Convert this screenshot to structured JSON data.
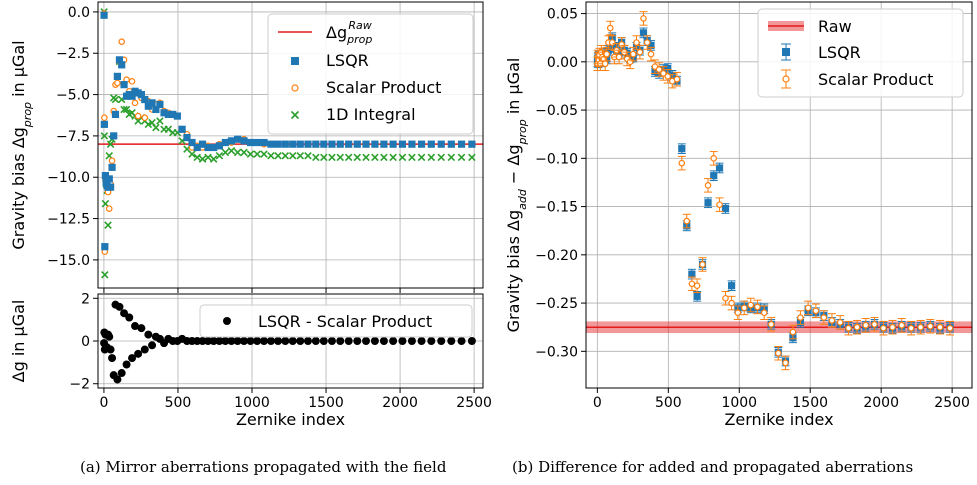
{
  "chart_data": [
    {
      "panel": "a-top",
      "type": "scatter",
      "xlabel": "",
      "ylabel": "Gravity bias Δg_prop in µGal",
      "xlim": [
        -40,
        2560
      ],
      "ylim": [
        -16.7,
        0.6
      ],
      "yticks": [
        0.0,
        -2.5,
        -5.0,
        -7.5,
        -10.0,
        -12.5,
        -15.0
      ],
      "ytick_labels": [
        "0.0",
        "−2.5",
        "−5.0",
        "−7.5",
        "−10.0",
        "−12.5",
        "−15.0"
      ],
      "xticks": [
        0,
        500,
        1000,
        1500,
        2000,
        2500
      ],
      "legend": {
        "placement": "top-right",
        "entries": [
          "Δg_prop^Raw",
          "LSQR",
          "Scalar Product",
          "1D Integral"
        ]
      },
      "reference_line": {
        "name": "Δg_prop^Raw",
        "y": -8.0,
        "color": "#e41a1c"
      },
      "series": [
        {
          "name": "LSQR",
          "marker": "square",
          "color": "#1f77b4",
          "x": [
            1,
            3,
            6,
            10,
            15,
            21,
            28,
            36,
            45,
            55,
            66,
            78,
            91,
            105,
            120,
            136,
            153,
            171,
            190,
            210,
            231,
            253,
            276,
            300,
            325,
            351,
            378,
            406,
            435,
            465,
            496,
            528,
            561,
            595,
            630,
            666,
            703,
            741,
            780,
            820,
            861,
            903,
            946,
            990,
            1035,
            1081,
            1128,
            1176,
            1225,
            1275,
            1326,
            1378,
            1431,
            1485,
            1540,
            1596,
            1653,
            1711,
            1770,
            1830,
            1891,
            1953,
            2016,
            2080,
            2145,
            2211,
            2278,
            2346,
            2415,
            2485
          ],
          "y": [
            -0.2,
            -6.8,
            -14.2,
            -9.9,
            -10.3,
            -10.5,
            -10.6,
            -10.1,
            -10.6,
            -9.4,
            -7.5,
            -6.2,
            -3.9,
            -2.9,
            -3.2,
            -4.4,
            -5.1,
            -5.0,
            -5.1,
            -4.8,
            -4.9,
            -5.0,
            -5.3,
            -5.7,
            -5.5,
            -5.9,
            -5.6,
            -6.1,
            -6.2,
            -6.2,
            -6.3,
            -7.1,
            -7.6,
            -7.9,
            -8.2,
            -8.0,
            -8.2,
            -8.2,
            -8.1,
            -7.9,
            -7.8,
            -7.7,
            -7.8,
            -7.9,
            -7.9,
            -7.9,
            -8.0,
            -8.0,
            -8.0,
            -8.0,
            -8.0,
            -8.0,
            -8.0,
            -8.0,
            -8.0,
            -8.0,
            -8.0,
            -8.0,
            -8.0,
            -8.0,
            -8.0,
            -8.0,
            -8.0,
            -8.0,
            -8.0,
            -8.0,
            -8.0,
            -8.0,
            -8.0,
            -8.0
          ]
        },
        {
          "name": "Scalar Product",
          "marker": "open-circle",
          "color": "#ff7f0e",
          "x": [
            1,
            3,
            6,
            10,
            15,
            21,
            28,
            36,
            45,
            55,
            66,
            78,
            91,
            105,
            120,
            136,
            153,
            171,
            190,
            210,
            231,
            253,
            276,
            300,
            325,
            351,
            378,
            406,
            435,
            465,
            496,
            528,
            561,
            595,
            630,
            666,
            703,
            741,
            780,
            820,
            861,
            903,
            946,
            990,
            1035,
            1081,
            1128,
            1176,
            1225,
            1275,
            1326,
            1378,
            1431,
            1485,
            1540,
            1596,
            1653,
            1711,
            1770,
            1830,
            1891,
            1953,
            2016,
            2080,
            2145,
            2211,
            2278,
            2346,
            2415,
            2485
          ],
          "y": [
            -0.1,
            -6.4,
            -14.5,
            -10.2,
            -10.0,
            -10.2,
            -10.9,
            -11.9,
            -10.4,
            -9.0,
            -6.0,
            -4.4,
            -4.3,
            -3.0,
            -1.8,
            -2.9,
            -4.1,
            -4.8,
            -4.2,
            -5.5,
            -6.3,
            -5.2,
            -6.4,
            -5.4,
            -5.9,
            -5.6,
            -5.5,
            -6.0,
            -6.1,
            -6.2,
            -6.3,
            -7.1,
            -7.4,
            -8.2,
            -8.1,
            -8.2,
            -8.1,
            -8.2,
            -8.0,
            -7.9,
            -7.9,
            -7.7,
            -7.7,
            -7.9,
            -7.9,
            -8.0,
            -8.0,
            -8.0,
            -8.0,
            -8.0,
            -8.0,
            -8.0,
            -8.0,
            -8.0,
            -8.0,
            -8.0,
            -8.0,
            -8.0,
            -8.0,
            -8.0,
            -8.0,
            -8.0,
            -8.0,
            -8.0,
            -8.0,
            -8.0,
            -8.0,
            -8.0,
            -8.0,
            -8.0
          ]
        },
        {
          "name": "1D Integral",
          "marker": "x",
          "color": "#2ca02c",
          "x": [
            1,
            3,
            6,
            10,
            15,
            21,
            28,
            36,
            45,
            55,
            66,
            78,
            91,
            105,
            120,
            136,
            153,
            171,
            190,
            210,
            231,
            253,
            276,
            300,
            325,
            351,
            378,
            406,
            435,
            465,
            496,
            528,
            561,
            595,
            630,
            666,
            703,
            741,
            780,
            820,
            861,
            903,
            946,
            990,
            1035,
            1081,
            1128,
            1176,
            1225,
            1275,
            1326,
            1378,
            1431,
            1485,
            1540,
            1596,
            1653,
            1711,
            1770,
            1830,
            1891,
            1953,
            2016,
            2080,
            2145,
            2211,
            2278,
            2346,
            2415,
            2485
          ],
          "y": [
            0.0,
            -7.5,
            -15.9,
            -11.6,
            -10.4,
            -10.8,
            -12.9,
            -8.7,
            -8.0,
            -7.7,
            -5.2,
            -5.3,
            -3.9,
            -3.0,
            -5.3,
            -5.9,
            -5.9,
            -6.2,
            -6.1,
            -6.3,
            -6.6,
            -6.4,
            -6.6,
            -6.8,
            -6.7,
            -7.0,
            -6.6,
            -7.1,
            -7.1,
            -7.3,
            -7.3,
            -7.8,
            -8.3,
            -8.6,
            -8.8,
            -8.9,
            -8.8,
            -8.9,
            -8.7,
            -8.5,
            -8.4,
            -8.5,
            -8.5,
            -8.6,
            -8.6,
            -8.6,
            -8.7,
            -8.7,
            -8.7,
            -8.7,
            -8.7,
            -8.7,
            -8.8,
            -8.8,
            -8.8,
            -8.8,
            -8.8,
            -8.8,
            -8.8,
            -8.8,
            -8.8,
            -8.8,
            -8.8,
            -8.8,
            -8.8,
            -8.8,
            -8.8,
            -8.8,
            -8.8,
            -8.8
          ]
        }
      ]
    },
    {
      "panel": "a-bottom",
      "type": "scatter",
      "xlabel": "Zernike index",
      "ylabel": "Δg in µGal",
      "xlim": [
        -40,
        2560
      ],
      "ylim": [
        -2.2,
        2.2
      ],
      "yticks": [
        2,
        0,
        -2
      ],
      "ytick_labels": [
        "2",
        "0",
        "−2"
      ],
      "xticks": [
        0,
        500,
        1000,
        1500,
        2000,
        2500
      ],
      "xtick_labels": [
        "0",
        "500",
        "1000",
        "1500",
        "2000",
        "2500"
      ],
      "legend": {
        "placement": "top-right",
        "entries": [
          "LSQR - Scalar Product"
        ]
      },
      "series": [
        {
          "name": "LSQR - Scalar Product",
          "marker": "filled-circle",
          "color": "#000000",
          "x": [
            1,
            3,
            6,
            10,
            15,
            21,
            28,
            36,
            45,
            55,
            66,
            78,
            91,
            105,
            120,
            136,
            153,
            171,
            190,
            210,
            231,
            253,
            276,
            300,
            325,
            351,
            378,
            406,
            435,
            465,
            496,
            528,
            561,
            595,
            630,
            666,
            703,
            741,
            780,
            820,
            861,
            903,
            946,
            990,
            1035,
            1081,
            1128,
            1176,
            1225,
            1275,
            1326,
            1378,
            1431,
            1485,
            1540,
            1596,
            1653,
            1711,
            1770,
            1830,
            1891,
            1953,
            2016,
            2080,
            2145,
            2211,
            2278,
            2346,
            2415,
            2485
          ],
          "y": [
            -0.1,
            0.4,
            -0.4,
            0.3,
            0.3,
            -0.3,
            0.3,
            0.2,
            -0.4,
            -0.8,
            -1.6,
            1.7,
            -1.8,
            1.6,
            -1.5,
            1.3,
            -1.1,
            1.1,
            -0.8,
            0.7,
            -0.6,
            0.6,
            -0.4,
            0.3,
            -0.2,
            0.2,
            0.1,
            -0.1,
            0.1,
            0.0,
            0.0,
            0.1,
            0.0,
            0.0,
            0.0,
            0.0,
            0.0,
            0.0,
            0.0,
            0.0,
            0.0,
            0.0,
            0.0,
            0.0,
            0.0,
            0.0,
            0.0,
            0.0,
            0.0,
            0.0,
            0.0,
            0.0,
            0.0,
            0.0,
            0.0,
            0.0,
            0.0,
            0.0,
            0.0,
            0.0,
            0.0,
            0.0,
            0.0,
            0.0,
            0.0,
            0.0,
            0.0,
            0.0,
            0.0,
            0.0
          ]
        }
      ]
    },
    {
      "panel": "b",
      "type": "scatter",
      "xlabel": "Zernike index",
      "ylabel": "Gravity bias Δg_add − Δg_prop in µGal",
      "xlim": [
        -80,
        2640
      ],
      "ylim": [
        -0.338,
        0.062
      ],
      "yticks": [
        0.05,
        0.0,
        -0.05,
        -0.1,
        -0.15,
        -0.2,
        -0.25,
        -0.3
      ],
      "ytick_labels": [
        "0.05",
        "0.00",
        "−0.05",
        "−0.10",
        "−0.15",
        "−0.20",
        "−0.25",
        "−0.30"
      ],
      "xticks": [
        0,
        500,
        1000,
        1500,
        2000,
        2500
      ],
      "xtick_labels": [
        "0",
        "500",
        "1000",
        "1500",
        "2000",
        "2500"
      ],
      "legend": {
        "placement": "top-right",
        "entries": [
          "Raw",
          "LSQR",
          "Scalar Product"
        ]
      },
      "reference_band": {
        "name": "Raw",
        "y": -0.275,
        "half_width": 0.006,
        "color": "#e41a1c"
      },
      "series": [
        {
          "name": "LSQR",
          "marker": "square",
          "color": "#1f77b4",
          "x": [
            1,
            3,
            6,
            10,
            15,
            21,
            28,
            36,
            45,
            55,
            66,
            78,
            91,
            105,
            120,
            136,
            153,
            171,
            190,
            210,
            231,
            253,
            276,
            300,
            325,
            351,
            378,
            406,
            435,
            465,
            496,
            528,
            561,
            595,
            630,
            666,
            703,
            741,
            780,
            820,
            861,
            903,
            946,
            990,
            1035,
            1081,
            1128,
            1176,
            1225,
            1275,
            1326,
            1378,
            1431,
            1485,
            1540,
            1596,
            1653,
            1711,
            1770,
            1830,
            1891,
            1953,
            2016,
            2080,
            2145,
            2211,
            2278,
            2346,
            2415,
            2485
          ],
          "y": [
            0.0,
            0.004,
            -0.001,
            0.006,
            0.002,
            0.003,
            0.006,
            0.0,
            0.009,
            0.004,
            0.003,
            0.012,
            0.016,
            0.025,
            0.015,
            0.012,
            0.008,
            0.02,
            0.012,
            0.009,
            0.004,
            0.005,
            0.015,
            0.012,
            0.03,
            0.022,
            0.017,
            -0.01,
            -0.012,
            -0.008,
            -0.007,
            -0.014,
            -0.02,
            -0.09,
            -0.17,
            -0.22,
            -0.243,
            -0.21,
            -0.146,
            -0.118,
            -0.11,
            -0.152,
            -0.232,
            -0.255,
            -0.253,
            -0.255,
            -0.255,
            -0.256,
            -0.272,
            -0.301,
            -0.31,
            -0.286,
            -0.27,
            -0.258,
            -0.26,
            -0.263,
            -0.27,
            -0.272,
            -0.275,
            -0.276,
            -0.274,
            -0.272,
            -0.275,
            -0.276,
            -0.274,
            -0.275,
            -0.275,
            -0.274,
            -0.276,
            -0.275
          ]
        },
        {
          "name": "Scalar Product",
          "marker": "open-circle",
          "color": "#ff7f0e",
          "x": [
            1,
            3,
            6,
            10,
            15,
            21,
            28,
            36,
            45,
            55,
            66,
            78,
            91,
            105,
            120,
            136,
            153,
            171,
            190,
            210,
            231,
            253,
            276,
            300,
            325,
            351,
            378,
            406,
            435,
            465,
            496,
            528,
            561,
            595,
            630,
            666,
            703,
            741,
            780,
            820,
            861,
            903,
            946,
            990,
            1035,
            1081,
            1128,
            1176,
            1225,
            1275,
            1326,
            1378,
            1431,
            1485,
            1540,
            1596,
            1653,
            1711,
            1770,
            1830,
            1891,
            1953,
            2016,
            2080,
            2145,
            2211,
            2278,
            2346,
            2415,
            2485
          ],
          "y": [
            -0.002,
            0.005,
            0.003,
            0.002,
            0.007,
            -0.002,
            0.01,
            0.005,
            0.003,
            -0.002,
            0.008,
            0.02,
            0.035,
            0.02,
            0.005,
            0.012,
            0.005,
            0.018,
            0.01,
            0.003,
            0.0,
            0.008,
            0.02,
            0.01,
            0.045,
            0.02,
            0.008,
            -0.005,
            -0.008,
            -0.012,
            -0.015,
            -0.02,
            -0.018,
            -0.105,
            -0.165,
            -0.23,
            -0.232,
            -0.21,
            -0.128,
            -0.1,
            -0.148,
            -0.245,
            -0.25,
            -0.26,
            -0.255,
            -0.252,
            -0.254,
            -0.26,
            -0.272,
            -0.302,
            -0.312,
            -0.28,
            -0.265,
            -0.255,
            -0.258,
            -0.265,
            -0.268,
            -0.27,
            -0.276,
            -0.275,
            -0.273,
            -0.272,
            -0.276,
            -0.275,
            -0.273,
            -0.276,
            -0.275,
            -0.274,
            -0.275,
            -0.276
          ]
        }
      ]
    }
  ],
  "captions": {
    "a": "(a) Mirror aberrations propagated with the field",
    "b": "(b) Difference for added and propagated aberrations"
  }
}
